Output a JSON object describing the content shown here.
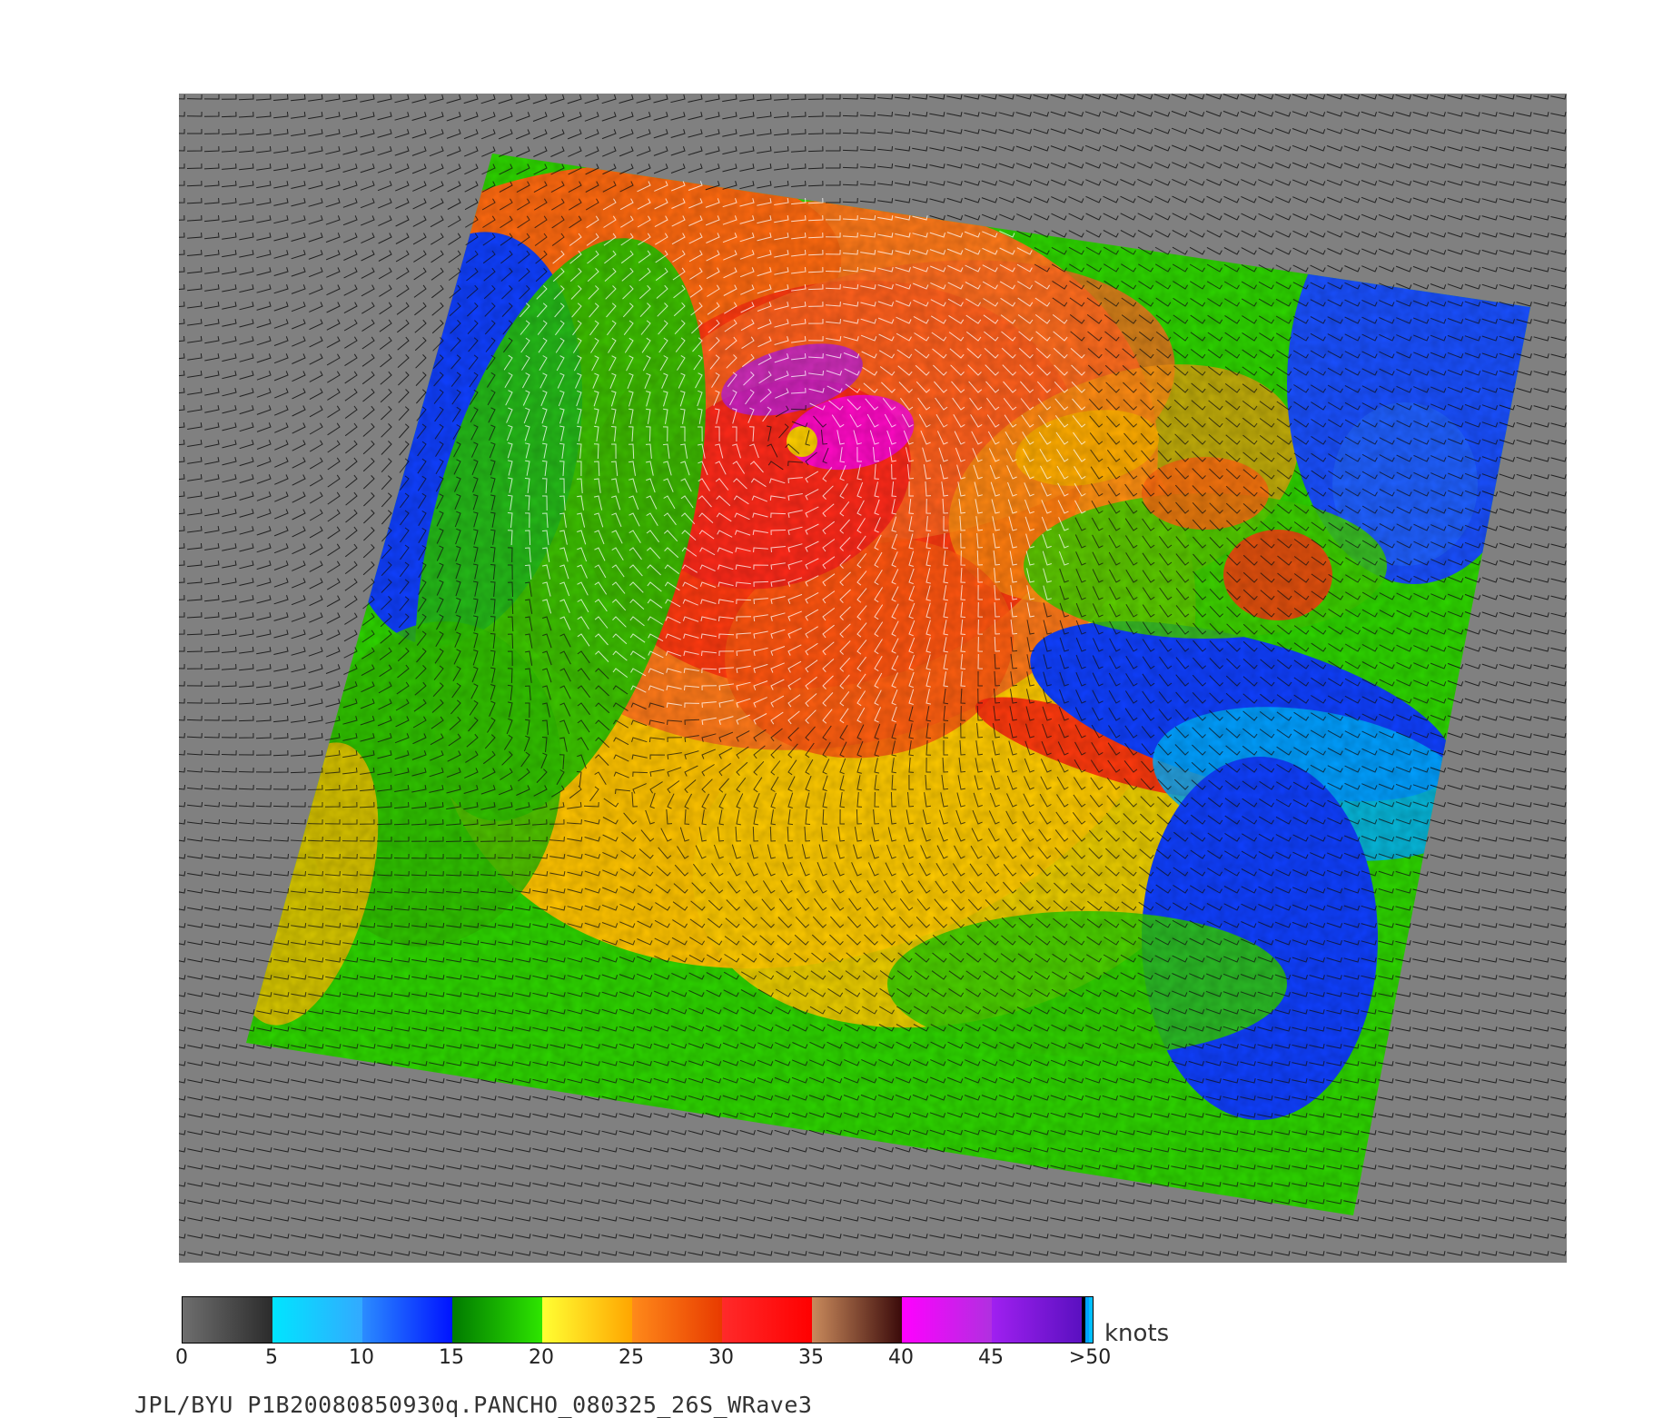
{
  "colorbar": {
    "units": "knots",
    "ticks": [
      "0",
      "5",
      "10",
      "15",
      "20",
      "25",
      "30",
      "35",
      "40",
      "45",
      ">50"
    ],
    "tick_values": [
      0,
      5,
      10,
      15,
      20,
      25,
      30,
      35,
      40,
      45,
      50
    ],
    "segments": [
      {
        "from": 0,
        "to": 5,
        "start": "#6e6e6e",
        "end": "#2b2b2b"
      },
      {
        "from": 5,
        "to": 10,
        "start": "#00e5ff",
        "end": "#33a9ff"
      },
      {
        "from": 10,
        "to": 15,
        "start": "#2b8cff",
        "end": "#0012ff"
      },
      {
        "from": 15,
        "to": 20,
        "start": "#007a00",
        "end": "#2ee600"
      },
      {
        "from": 20,
        "to": 25,
        "start": "#ffff33",
        "end": "#ffa500"
      },
      {
        "from": 25,
        "to": 30,
        "start": "#ff8a1a",
        "end": "#e83a00"
      },
      {
        "from": 30,
        "to": 35,
        "start": "#ff2a2a",
        "end": "#ff0000"
      },
      {
        "from": 35,
        "to": 40,
        "start": "#c98a5c",
        "end": "#3a0a0a"
      },
      {
        "from": 40,
        "to": 45,
        "start": "#ff00ff",
        "end": "#b030e0"
      },
      {
        "from": 45,
        "to": 50,
        "start": "#a020f0",
        "end": "#5a10c0"
      }
    ],
    "overflow_colors": [
      "#000000",
      "#00a0ff",
      "#00c0ff"
    ]
  },
  "caption": "JPL/BYU  P1B20080850930q.PANCHO_080325_26S_WRave3",
  "map": {
    "background": "#808080",
    "storm_name": "PANCHO",
    "wind_vectors": "on"
  }
}
